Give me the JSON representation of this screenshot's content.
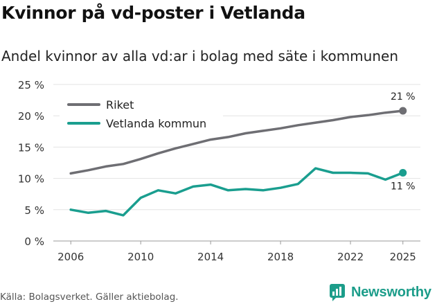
{
  "title": "Kvinnor på vd-poster i Vetlanda",
  "subtitle": "Andel kvinnor av alla vd:ar i bolag med säte i kommunen",
  "source": "Källa: Bolagsverket. Gäller aktiebolag.",
  "brand": {
    "name": "Newsworthy",
    "icon": "newsworthy-logo-icon",
    "color": "#1c9d8a"
  },
  "chart_data": {
    "type": "line",
    "title": "Kvinnor på vd-poster i Vetlanda",
    "xlabel": "",
    "ylabel": "",
    "x": [
      2006,
      2007,
      2008,
      2009,
      2010,
      2011,
      2012,
      2013,
      2014,
      2015,
      2016,
      2017,
      2018,
      2019,
      2020,
      2021,
      2022,
      2023,
      2024,
      2025
    ],
    "xlim": [
      2005,
      2026
    ],
    "ylim": [
      0,
      25
    ],
    "xticks": [
      2006,
      2010,
      2014,
      2018,
      2022,
      2025
    ],
    "yticks": [
      0,
      5,
      10,
      15,
      20,
      25
    ],
    "ytick_labels": [
      "0 %",
      "5 %",
      "10 %",
      "15 %",
      "20 %",
      "25 %"
    ],
    "grid": true,
    "legend_position": "top-left",
    "series": [
      {
        "name": "Riket",
        "color": "#6e6e73",
        "values": [
          10.8,
          11.3,
          11.9,
          12.3,
          13.1,
          14.0,
          14.8,
          15.5,
          16.2,
          16.6,
          17.2,
          17.6,
          18.0,
          18.5,
          18.9,
          19.3,
          19.8,
          20.1,
          20.5,
          20.8
        ],
        "end_label": "21 %"
      },
      {
        "name": "Vetlanda kommun",
        "color": "#1a9e8f",
        "values": [
          5.0,
          4.5,
          4.8,
          4.1,
          6.9,
          8.1,
          7.6,
          8.7,
          9.0,
          8.1,
          8.3,
          8.1,
          8.5,
          9.1,
          11.6,
          10.9,
          10.9,
          10.8,
          9.8,
          10.9
        ],
        "end_label": "11 %"
      }
    ]
  }
}
